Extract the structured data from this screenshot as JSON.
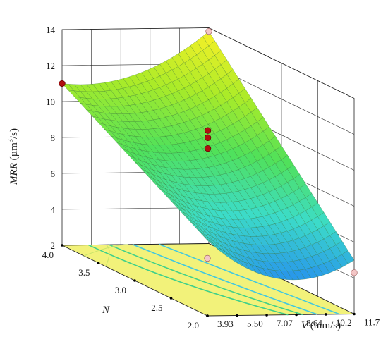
{
  "chart_data": {
    "type": "surface3d",
    "z_axis": {
      "label_italic": "MRR",
      "label_rest": " (µm",
      "label_sup": "3",
      "label_end": "/s)",
      "ticks": [
        "2",
        "4",
        "6",
        "8",
        "10",
        "12",
        "14"
      ],
      "range": [
        2,
        14
      ]
    },
    "v_axis": {
      "label_italic": "V",
      "label_rest": " (mm/s)",
      "ticks": [
        "3.93",
        "5.50",
        "7.07",
        "8.64",
        "10.2",
        "11.7"
      ],
      "range": [
        3.93,
        11.7
      ]
    },
    "n_axis": {
      "label_italic": "N",
      "label_rest": "",
      "ticks": [
        "2.0",
        "2.5",
        "3.0",
        "3.5",
        "4.0"
      ],
      "range": [
        2.0,
        4.0
      ]
    },
    "surface_corners": [
      {
        "V": 3.93,
        "N": 4.0,
        "MRR": 11.0
      },
      {
        "V": 11.7,
        "N": 4.0,
        "MRR": 13.8
      },
      {
        "V": 11.7,
        "N": 2.0,
        "MRR": 5.0
      },
      {
        "V": 3.93,
        "N": 2.0,
        "MRR": 6.2
      }
    ],
    "design_points": [
      {
        "V": 3.93,
        "N": 4.0,
        "MRR": 11.0,
        "position": "above"
      },
      {
        "V": 7.8,
        "N": 3.0,
        "MRR": 10.3,
        "position": "above"
      },
      {
        "V": 7.8,
        "N": 3.0,
        "MRR": 9.9,
        "position": "above"
      },
      {
        "V": 7.8,
        "N": 3.0,
        "MRR": 9.3,
        "position": "above"
      },
      {
        "V": 11.7,
        "N": 4.0,
        "MRR": 13.8,
        "position": "below"
      },
      {
        "V": 3.93,
        "N": 2.0,
        "MRR": 5.2,
        "position": "below"
      },
      {
        "V": 11.7,
        "N": 2.0,
        "MRR": 4.3,
        "position": "below"
      }
    ],
    "colors": {
      "floor": "#f2f27a",
      "contour": "#3fd08a",
      "contour_low": "#40c8e0",
      "point_above": "#b01010",
      "point_below": "#f3c6c6",
      "grid": "#222222"
    }
  }
}
